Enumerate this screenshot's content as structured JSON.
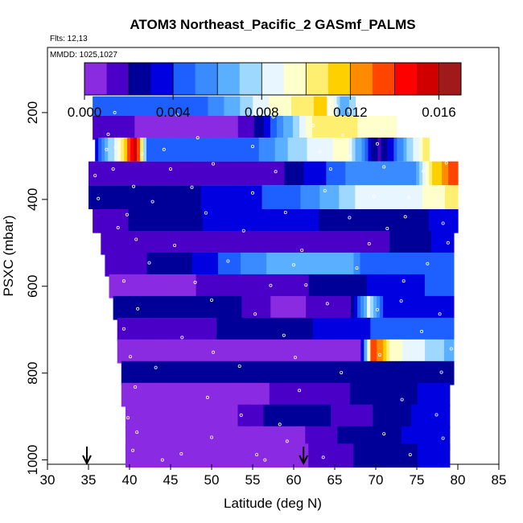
{
  "chart_data": {
    "type": "heatmap",
    "title": "ATOM3 Northeast_Pacific_2 GASmf_PALMS",
    "flights_label": "Flts: 12,13",
    "dates_label": "MMDD: 1025,1027",
    "xlabel": "Latitude (deg N)",
    "ylabel": "PSXC (mbar)",
    "xlim": [
      30,
      85
    ],
    "ylim": [
      1010,
      50
    ],
    "x_ticks": [
      "30",
      "35",
      "40",
      "45",
      "50",
      "55",
      "60",
      "65",
      "70",
      "75",
      "80",
      "85"
    ],
    "y_ticks": [
      "200",
      "400",
      "600",
      "800",
      "1000"
    ],
    "colorbar": {
      "range": [
        0,
        0.017
      ],
      "tick_labels": [
        "0.000",
        "0.004",
        "0.008",
        "0.012",
        "0.016"
      ],
      "colors": [
        "#8A2BE2",
        "#4B00C8",
        "#000099",
        "#0000E0",
        "#1E60FF",
        "#3A8BFF",
        "#5AB0FF",
        "#9ED8FF",
        "#E8F6FF",
        "#FFFFCC",
        "#FFEF70",
        "#FFD000",
        "#FF8C00",
        "#FF4500",
        "#FF0000",
        "#D00000",
        "#A01A1A"
      ]
    },
    "arrows_lat": [
      34.8,
      61.2
    ],
    "layers": [
      {
        "p": 190,
        "lat": [
          35.5,
          64.0
        ],
        "stops": [
          [
            0,
            0.0045
          ],
          [
            0.25,
            0.004
          ],
          [
            0.5,
            0.005
          ],
          [
            0.75,
            0.009
          ],
          [
            1,
            0.0115
          ]
        ]
      },
      {
        "p": 190,
        "lat": [
          64.5,
          67.5
        ],
        "stops": [
          [
            0,
            0.01
          ],
          [
            0.5,
            0.006
          ],
          [
            1,
            0.008
          ]
        ]
      },
      {
        "p": 235,
        "lat": [
          35.5,
          72.5
        ],
        "stops": [
          [
            0,
            0.002
          ],
          [
            0.2,
            0.0005
          ],
          [
            0.45,
            0.0003
          ],
          [
            0.55,
            0.0025
          ],
          [
            0.75,
            0.011
          ],
          [
            1,
            0.009
          ]
        ]
      },
      {
        "p": 285,
        "lat": [
          35.8,
          76.5
        ],
        "stops": [
          [
            0,
            0.0035
          ],
          [
            0.08,
            0.01
          ],
          [
            0.12,
            0.016
          ],
          [
            0.16,
            0.004
          ],
          [
            0.45,
            0.004
          ],
          [
            0.6,
            0.0075
          ],
          [
            0.75,
            0.0095
          ],
          [
            0.85,
            0.0015
          ],
          [
            1,
            0.011
          ]
        ]
      },
      {
        "p": 340,
        "lat": [
          35.0,
          80.0
        ],
        "stops": [
          [
            0,
            0.001
          ],
          [
            0.2,
            0.002
          ],
          [
            0.5,
            0.0015
          ],
          [
            0.7,
            0.005
          ],
          [
            0.88,
            0.0055
          ],
          [
            0.93,
            0.011
          ],
          [
            1,
            0.014
          ]
        ]
      },
      {
        "p": 395,
        "lat": [
          35.0,
          80.0
        ],
        "stops": [
          [
            0,
            0.002
          ],
          [
            0.3,
            0.003
          ],
          [
            0.55,
            0.0045
          ],
          [
            0.75,
            0.0085
          ],
          [
            0.9,
            0.009
          ],
          [
            1,
            0.0105
          ]
        ]
      },
      {
        "p": 450,
        "lat": [
          35.5,
          80.0
        ],
        "stops": [
          [
            0,
            0.0015
          ],
          [
            0.3,
            0.003
          ],
          [
            0.55,
            0.0035
          ],
          [
            0.75,
            0.002
          ],
          [
            1,
            0.0035
          ]
        ]
      },
      {
        "p": 500,
        "lat": [
          36.5,
          79.5
        ],
        "stops": [
          [
            0,
            0.0015
          ],
          [
            0.3,
            0.001
          ],
          [
            0.5,
            0.002
          ],
          [
            0.7,
            0.001
          ],
          [
            1,
            0.0035
          ]
        ]
      },
      {
        "p": 550,
        "lat": [
          37.0,
          79.5
        ],
        "stops": [
          [
            0,
            0.001
          ],
          [
            0.25,
            0.003
          ],
          [
            0.5,
            0.0065
          ],
          [
            0.7,
            0.0065
          ],
          [
            0.75,
            0.004
          ],
          [
            1,
            0.005
          ]
        ]
      },
      {
        "p": 600,
        "lat": [
          37.5,
          79.5
        ],
        "stops": [
          [
            0,
            0.0003
          ],
          [
            0.25,
            0.001
          ],
          [
            0.5,
            0.0015
          ],
          [
            0.75,
            0.003
          ],
          [
            1,
            0.0045
          ]
        ]
      },
      {
        "p": 650,
        "lat": [
          38.0,
          79.5
        ],
        "stops": [
          [
            0,
            0.002
          ],
          [
            0.3,
            0.003
          ],
          [
            0.5,
            0.0005
          ],
          [
            0.7,
            0.002
          ],
          [
            0.75,
            0.008
          ],
          [
            0.8,
            0.003
          ],
          [
            1,
            0.004
          ]
        ]
      },
      {
        "p": 700,
        "lat": [
          38.5,
          79.5
        ],
        "stops": [
          [
            0,
            0.0015
          ],
          [
            0.3,
            0.002
          ],
          [
            0.5,
            0.0025
          ],
          [
            0.75,
            0.004
          ],
          [
            1,
            0.005
          ]
        ]
      },
      {
        "p": 750,
        "lat": [
          38.5,
          79.5
        ],
        "stops": [
          [
            0,
            0.001
          ],
          [
            0.3,
            0.0003
          ],
          [
            0.55,
            0.0005
          ],
          [
            0.72,
            0.001
          ],
          [
            0.76,
            0.014
          ],
          [
            0.82,
            0.0095
          ],
          [
            1,
            0.0065
          ]
        ]
      },
      {
        "p": 800,
        "lat": [
          39.0,
          79.5
        ],
        "stops": [
          [
            0,
            0.002
          ],
          [
            0.2,
            0.003
          ],
          [
            0.5,
            0.003
          ],
          [
            0.75,
            0.002
          ],
          [
            1,
            0.0025
          ]
        ]
      },
      {
        "p": 850,
        "lat": [
          39.0,
          79.0
        ],
        "stops": [
          [
            0,
            0.0005
          ],
          [
            0.2,
            0.0003
          ],
          [
            0.45,
            0.001
          ],
          [
            0.7,
            0.002
          ],
          [
            1,
            0.0035
          ]
        ]
      },
      {
        "p": 900,
        "lat": [
          39.5,
          79.0
        ],
        "stops": [
          [
            0,
            0.001
          ],
          [
            0.3,
            0.0004
          ],
          [
            0.5,
            0.003
          ],
          [
            0.7,
            0.0015
          ],
          [
            1,
            0.004
          ]
        ]
      },
      {
        "p": 950,
        "lat": [
          39.5,
          79.0
        ],
        "stops": [
          [
            0,
            0.0005
          ],
          [
            0.3,
            0.0003
          ],
          [
            0.5,
            0.0005
          ],
          [
            0.7,
            0.0025
          ],
          [
            1,
            0.0035
          ]
        ]
      },
      {
        "p": 990,
        "lat": [
          39.5,
          79.0
        ],
        "stops": [
          [
            0,
            0.0004
          ],
          [
            0.3,
            0.0002
          ],
          [
            0.5,
            0.0005
          ],
          [
            0.7,
            0.002
          ],
          [
            1,
            0.0035
          ]
        ]
      }
    ],
    "points": [
      [
        38.2,
        200
      ],
      [
        45.8,
        205
      ],
      [
        57.5,
        210
      ],
      [
        66.8,
        195
      ],
      [
        65.2,
        185
      ],
      [
        62.4,
        230
      ],
      [
        70.8,
        240
      ],
      [
        66.0,
        252
      ],
      [
        48.3,
        258
      ],
      [
        37.4,
        250
      ],
      [
        38.3,
        280
      ],
      [
        44.2,
        285
      ],
      [
        55.0,
        278
      ],
      [
        63.2,
        290
      ],
      [
        70.2,
        272
      ],
      [
        66.8,
        300
      ],
      [
        37.2,
        285
      ],
      [
        41.5,
        295
      ],
      [
        38.0,
        330
      ],
      [
        45.0,
        330
      ],
      [
        50.2,
        318
      ],
      [
        57.8,
        336
      ],
      [
        64.5,
        330
      ],
      [
        71.0,
        325
      ],
      [
        75.8,
        335
      ],
      [
        78.6,
        316
      ],
      [
        35.8,
        345
      ],
      [
        40.5,
        370
      ],
      [
        47.6,
        372
      ],
      [
        55.0,
        385
      ],
      [
        63.8,
        380
      ],
      [
        69.8,
        393
      ],
      [
        74.0,
        395
      ],
      [
        77.5,
        405
      ],
      [
        36.2,
        398
      ],
      [
        42.8,
        405
      ],
      [
        39.7,
        435
      ],
      [
        49.3,
        431
      ],
      [
        59.0,
        430
      ],
      [
        66.8,
        442
      ],
      [
        73.6,
        440
      ],
      [
        78.2,
        455
      ],
      [
        38.6,
        465
      ],
      [
        53.9,
        472
      ],
      [
        71.4,
        467
      ],
      [
        40.8,
        492
      ],
      [
        45.5,
        506
      ],
      [
        61.0,
        517
      ],
      [
        69.2,
        502
      ],
      [
        78.8,
        500
      ],
      [
        42.4,
        546
      ],
      [
        52.0,
        542
      ],
      [
        60.0,
        551
      ],
      [
        67.7,
        558
      ],
      [
        76.3,
        548
      ],
      [
        39.3,
        588
      ],
      [
        48.0,
        591
      ],
      [
        57.2,
        598
      ],
      [
        61.5,
        597
      ],
      [
        73.4,
        588
      ],
      [
        50.0,
        632
      ],
      [
        64.1,
        640
      ],
      [
        73.1,
        634
      ],
      [
        41.0,
        652
      ],
      [
        55.3,
        664
      ],
      [
        70.2,
        654
      ],
      [
        77.8,
        664
      ],
      [
        39.3,
        698
      ],
      [
        46.4,
        718
      ],
      [
        58.8,
        713
      ],
      [
        75.6,
        704
      ],
      [
        40.1,
        762
      ],
      [
        50.2,
        752
      ],
      [
        60.2,
        764
      ],
      [
        70.5,
        758
      ],
      [
        79.2,
        744
      ],
      [
        43.2,
        787
      ],
      [
        53.4,
        784
      ],
      [
        65.8,
        799
      ],
      [
        78.0,
        798
      ],
      [
        40.7,
        832
      ],
      [
        49.5,
        856
      ],
      [
        60.7,
        840
      ],
      [
        73.2,
        861
      ],
      [
        39.8,
        903
      ],
      [
        53.6,
        897
      ],
      [
        58.3,
        918
      ],
      [
        77.4,
        896
      ],
      [
        40.9,
        936
      ],
      [
        50.0,
        948
      ],
      [
        59.2,
        957
      ],
      [
        71.0,
        940
      ],
      [
        78.2,
        950
      ],
      [
        40.4,
        978
      ],
      [
        46.3,
        986
      ],
      [
        55.5,
        988
      ],
      [
        63.6,
        994
      ],
      [
        74.2,
        988
      ],
      [
        44.0,
        1000
      ],
      [
        56.5,
        1000
      ]
    ]
  }
}
